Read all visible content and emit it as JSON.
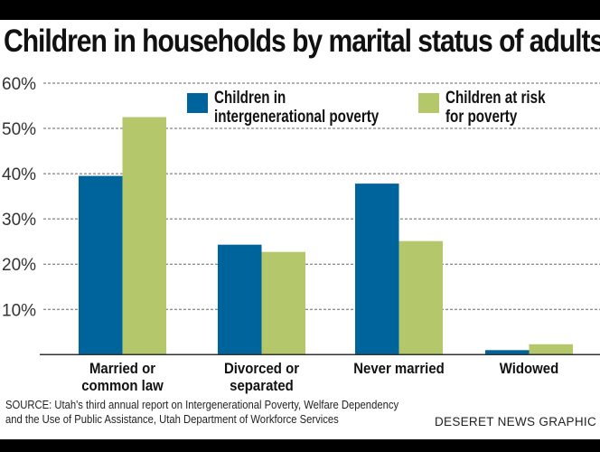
{
  "chart_data": {
    "type": "bar",
    "title": "Children in households by marital status of adults",
    "categories": [
      "Married or\ncommon law",
      "Divorced or\nseparated",
      "Never married",
      "Widowed"
    ],
    "series": [
      {
        "name": "Children in intergenerational poverty",
        "values": [
          39.5,
          24.3,
          37.8,
          1.0
        ],
        "color": "#00649c"
      },
      {
        "name": "Children at risk for poverty",
        "values": [
          52.5,
          22.7,
          25.1,
          2.3
        ],
        "color": "#b4c76a"
      }
    ],
    "ylim": [
      0,
      60
    ],
    "yticks": [
      "10%",
      "20%",
      "30%",
      "40%",
      "50%",
      "60%"
    ],
    "ytick_values": [
      10,
      20,
      30,
      40,
      50,
      60
    ],
    "grid": true,
    "legend": "top"
  },
  "legend_lines": [
    [
      "Children in",
      "intergenerational poverty"
    ],
    [
      "Children at risk",
      "for poverty"
    ]
  ],
  "source": [
    "SOURCE: Utah's third annual report on Intergenerational Poverty, Welfare Dependency",
    "and the Use of Public Assistance, Utah Department of Workforce Services"
  ],
  "credit": "DESERET NEWS GRAPHIC"
}
